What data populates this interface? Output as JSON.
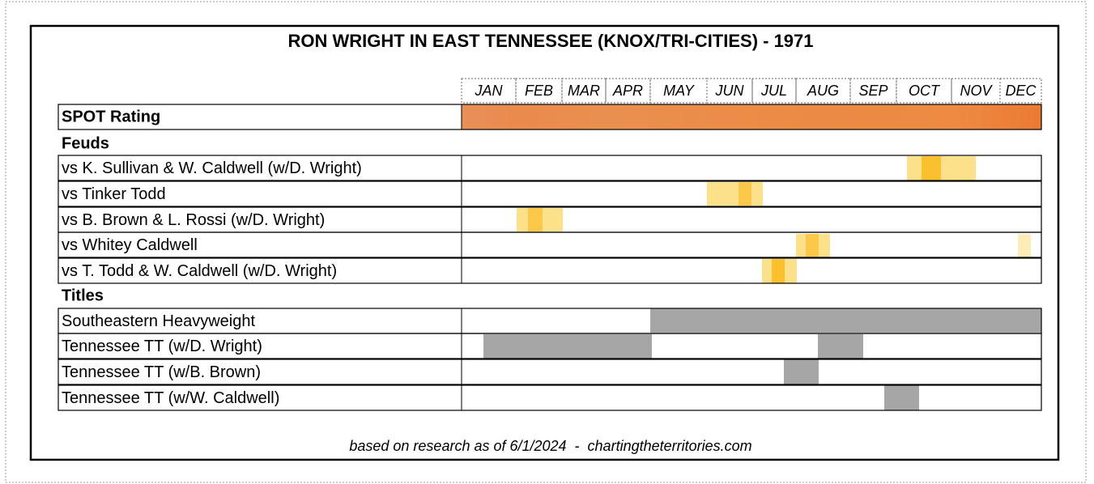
{
  "title": "RON WRIGHT IN EAST TENNESSEE (KNOX/TRI-CITIES) - 1971",
  "months": [
    "JAN",
    "FEB",
    "MAR",
    "APR",
    "MAY",
    "JUN",
    "JUL",
    "AUG",
    "SEP",
    "OCT",
    "NOV",
    "DEC"
  ],
  "spot_label": "SPOT Rating",
  "feuds": {
    "heading": "Feuds",
    "rows": [
      "vs K. Sullivan & W. Caldwell (w/D. Wright)",
      "vs Tinker Todd",
      "vs B. Brown & L. Rossi (w/D. Wright)",
      "vs Whitey Caldwell",
      "vs T. Todd & W. Caldwell (w/D. Wright)"
    ]
  },
  "titles": {
    "heading": "Titles",
    "rows": [
      "Southeastern Heavyweight",
      "Tennessee TT (w/D. Wright)",
      "Tennessee TT (w/B. Brown)",
      "Tennessee TT (w/W. Caldwell)"
    ]
  },
  "footer": "based on research as of 6/1/2024  -  chartingtheterritories.com"
}
